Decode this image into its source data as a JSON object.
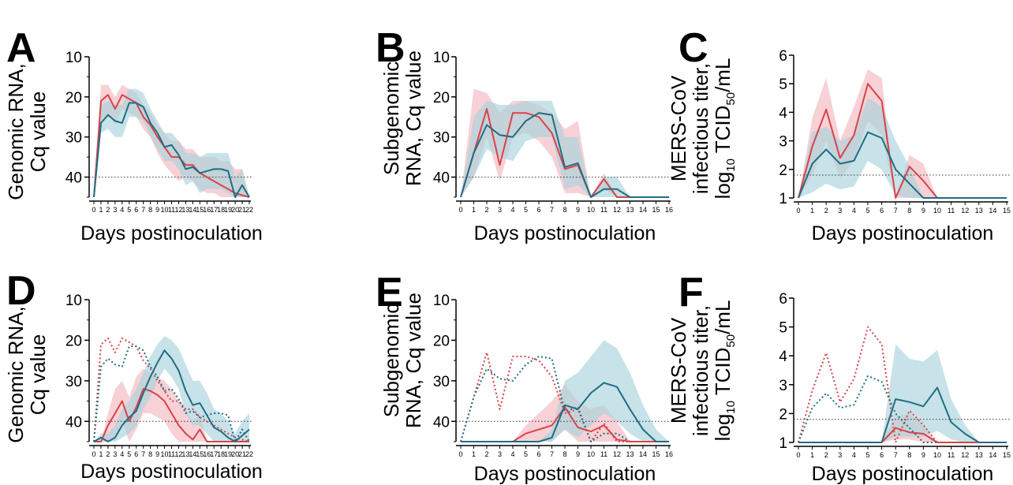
{
  "figure": {
    "x_axis_label": "Days postinoculation",
    "threshold_style": "dotted horizontal line",
    "colors": {
      "red": "#d9434a",
      "red_band": "#f2b8bf",
      "teal": "#1f6e83",
      "teal_band": "#a9d2dc",
      "threshold": "#333333"
    }
  },
  "chart_data": [
    {
      "panel": "A",
      "type": "line",
      "ylabel_lines": [
        "Genomic RNA,",
        "Cq value"
      ],
      "xlabel": "Days postinoculation",
      "y_inverted": true,
      "ylim": [
        45,
        10
      ],
      "yticks": [
        10,
        20,
        30,
        40
      ],
      "x": [
        0,
        1,
        2,
        3,
        4,
        5,
        6,
        7,
        8,
        9,
        10,
        11,
        12,
        13,
        14,
        15,
        16,
        17,
        18,
        19,
        20,
        21,
        22
      ],
      "threshold": 40,
      "series": [
        {
          "color": "red",
          "style": "solid",
          "values": [
            45,
            21,
            19.5,
            23,
            19.5,
            20.5,
            21.5,
            25,
            27,
            30,
            32.5,
            35,
            35,
            37,
            37,
            39,
            40,
            41,
            42,
            43,
            44,
            44.5,
            45
          ],
          "band_low": [
            45,
            17,
            17,
            20,
            17,
            18,
            19,
            22,
            24,
            27,
            29,
            31,
            31,
            33,
            33,
            35,
            35,
            35,
            36,
            36,
            38,
            38,
            45
          ],
          "band_high": [
            45,
            26,
            24,
            27,
            23,
            24,
            25,
            28,
            30,
            34,
            37,
            39,
            41,
            40,
            41,
            43,
            44,
            44,
            45,
            45,
            45,
            45,
            45
          ]
        },
        {
          "color": "teal",
          "style": "solid",
          "values": [
            45,
            26.5,
            24.5,
            26,
            26.5,
            21.5,
            21.5,
            22.5,
            26.5,
            29,
            32.5,
            32,
            34.5,
            38,
            37.5,
            39,
            38.5,
            38,
            38,
            38.5,
            45,
            42,
            45
          ],
          "band_low": [
            45,
            22,
            21,
            22,
            22,
            18,
            18,
            19,
            23,
            26,
            29,
            29,
            31,
            34,
            34,
            35,
            34,
            34,
            34,
            34,
            40,
            38,
            45
          ],
          "band_high": [
            45,
            29,
            28,
            30,
            30,
            25,
            25,
            26,
            30,
            33,
            36,
            36,
            38,
            42,
            41,
            44,
            43,
            43,
            43,
            44,
            45,
            45,
            45
          ]
        }
      ]
    },
    {
      "panel": "B",
      "type": "line",
      "ylabel_lines": [
        "Subgenomic",
        "RNA, Cq value"
      ],
      "xlabel": "Days postinoculation",
      "y_inverted": true,
      "ylim": [
        45,
        10
      ],
      "yticks": [
        10,
        20,
        30,
        40
      ],
      "x": [
        0,
        1,
        2,
        3,
        4,
        5,
        6,
        7,
        8,
        9,
        10,
        11,
        12,
        13,
        14,
        15,
        16
      ],
      "threshold": 40,
      "series": [
        {
          "color": "red",
          "style": "solid",
          "values": [
            45,
            34,
            23,
            37,
            24,
            24,
            25,
            29,
            38,
            37,
            45,
            40.5,
            45,
            45,
            45,
            45,
            45
          ],
          "band_low": [
            45,
            18,
            19,
            24,
            21,
            21,
            22,
            24,
            28,
            26,
            45,
            39,
            45,
            45,
            45,
            45,
            45
          ],
          "band_high": [
            45,
            40,
            30,
            41,
            30,
            29,
            31,
            35,
            44,
            44,
            45,
            43,
            45,
            45,
            45,
            45,
            45
          ]
        },
        {
          "color": "teal",
          "style": "solid",
          "values": [
            45,
            34,
            27,
            29.5,
            30,
            26,
            24,
            24.5,
            37.5,
            36.5,
            45,
            43,
            43,
            45,
            45,
            45,
            45
          ],
          "band_low": [
            45,
            25,
            21,
            22,
            22,
            21,
            21,
            21,
            30,
            30,
            45,
            40,
            40,
            45,
            45,
            45,
            45
          ],
          "band_high": [
            45,
            40,
            33,
            35,
            36,
            31,
            30,
            30,
            43,
            42,
            45,
            45,
            45,
            45,
            45,
            45,
            45
          ]
        }
      ]
    },
    {
      "panel": "C",
      "type": "line",
      "ylabel_lines": [
        "MERS-CoV",
        "infectious titer,"
      ],
      "ylabel_unit": {
        "pre": "log",
        "sub1": "10",
        "mid": " TCID",
        "sub2": "50",
        "post": "/mL"
      },
      "xlabel": "Days postinoculation",
      "ylim": [
        1,
        6
      ],
      "yticks": [
        1,
        2,
        3,
        4,
        5,
        6
      ],
      "x": [
        0,
        1,
        2,
        3,
        4,
        5,
        6,
        7,
        8,
        9,
        10,
        11,
        12,
        13,
        14,
        15
      ],
      "threshold": 1.8,
      "series": [
        {
          "color": "red",
          "style": "solid",
          "values": [
            1,
            2.8,
            4.1,
            2.4,
            3.2,
            5,
            4.4,
            1,
            2.1,
            1.6,
            1,
            1,
            1,
            1,
            1,
            1
          ],
          "band_low": [
            1,
            1.8,
            3,
            1.7,
            2.3,
            3.7,
            3.2,
            1,
            1,
            1,
            1,
            1,
            1,
            1,
            1,
            1
          ],
          "band_high": [
            1,
            3.8,
            5.2,
            3,
            4.2,
            5.5,
            5.2,
            1,
            2.5,
            2.2,
            1,
            1,
            1,
            1,
            1,
            1
          ]
        },
        {
          "color": "teal",
          "style": "solid",
          "values": [
            1,
            2.2,
            2.7,
            2.2,
            2.3,
            3.3,
            3.1,
            2,
            1.5,
            1,
            1,
            1,
            1,
            1,
            1,
            1
          ],
          "band_low": [
            1,
            1.2,
            1.5,
            1.3,
            1.4,
            2.3,
            2,
            1.1,
            1,
            1,
            1,
            1,
            1,
            1,
            1,
            1
          ],
          "band_high": [
            1,
            3.3,
            3.5,
            3,
            3.2,
            4.5,
            4.2,
            3,
            2.1,
            1,
            1,
            1,
            1,
            1,
            1,
            1
          ]
        }
      ]
    },
    {
      "panel": "D",
      "type": "line",
      "ylabel_lines": [
        "Genomic RNA,",
        "Cq value"
      ],
      "xlabel": "Days postinoculation",
      "y_inverted": true,
      "ylim": [
        45,
        10
      ],
      "yticks": [
        10,
        20,
        30,
        40
      ],
      "x": [
        0,
        1,
        2,
        3,
        4,
        5,
        6,
        7,
        8,
        9,
        10,
        11,
        12,
        13,
        14,
        15,
        16,
        17,
        18,
        19,
        20,
        21,
        22
      ],
      "threshold": 40,
      "series": [
        {
          "color": "red",
          "style": "dotted",
          "values": [
            45,
            21,
            19.5,
            23,
            19.5,
            20.5,
            21.5,
            25,
            27,
            30,
            32.5,
            35,
            35,
            37,
            37,
            39,
            40,
            41,
            42,
            43,
            44,
            44.5,
            45
          ]
        },
        {
          "color": "teal",
          "style": "dotted",
          "values": [
            45,
            26.5,
            24.5,
            26,
            26.5,
            21.5,
            21.5,
            22.5,
            26.5,
            29,
            32.5,
            32,
            34.5,
            38,
            37.5,
            39,
            38.5,
            38,
            38,
            38.5,
            45,
            42,
            45
          ]
        },
        {
          "color": "red",
          "style": "solid",
          "values": [
            45,
            45,
            41,
            38,
            35,
            40,
            36.5,
            32,
            32.5,
            33.5,
            35,
            38,
            41,
            43,
            44.5,
            42,
            45,
            45,
            45,
            45,
            45,
            45,
            45
          ],
          "band_low": [
            45,
            45,
            38,
            32,
            30,
            34,
            29,
            27,
            28,
            29,
            30,
            32,
            35,
            37,
            40,
            38,
            45,
            45,
            45,
            45,
            45,
            45,
            45
          ],
          "band_high": [
            45,
            45,
            45,
            44,
            40,
            45,
            42,
            38,
            38,
            39,
            40,
            43,
            45,
            45,
            45,
            45,
            45,
            45,
            45,
            45,
            45,
            45,
            45
          ]
        },
        {
          "color": "teal",
          "style": "solid",
          "values": [
            45,
            44,
            45,
            44,
            41,
            39,
            37.5,
            33,
            29,
            25.5,
            22.5,
            24.5,
            27.5,
            32.5,
            36,
            35.5,
            38.5,
            41.5,
            42.5,
            44,
            45,
            43.5,
            42
          ],
          "band_low": [
            45,
            43,
            43,
            41,
            37,
            35,
            32,
            28,
            24,
            21,
            19,
            20,
            22,
            26,
            30,
            30,
            33,
            37,
            38,
            40,
            43,
            40,
            38
          ],
          "band_high": [
            45,
            45,
            45,
            45,
            44,
            43,
            41,
            37,
            34,
            30,
            27,
            29,
            32,
            38,
            41,
            41,
            43,
            45,
            45,
            45,
            45,
            45,
            45
          ]
        }
      ]
    },
    {
      "panel": "E",
      "type": "line",
      "ylabel_lines": [
        "Subgenomic",
        "RNA, Cq value"
      ],
      "xlabel": "Days postinoculation",
      "y_inverted": true,
      "ylim": [
        45,
        10
      ],
      "yticks": [
        10,
        20,
        30,
        40
      ],
      "x": [
        0,
        1,
        2,
        3,
        4,
        5,
        6,
        7,
        8,
        9,
        10,
        11,
        12,
        13,
        14,
        15,
        16
      ],
      "threshold": 40,
      "series": [
        {
          "color": "red",
          "style": "dotted",
          "values": [
            45,
            34,
            23,
            37,
            24,
            24,
            25,
            29,
            38,
            37,
            45,
            40.5,
            45,
            45,
            45,
            45,
            45
          ]
        },
        {
          "color": "teal",
          "style": "dotted",
          "values": [
            45,
            34,
            27,
            29.5,
            30,
            26,
            24,
            24.5,
            37.5,
            36.5,
            45,
            43,
            43,
            45,
            45,
            45,
            45
          ]
        },
        {
          "color": "red",
          "style": "solid",
          "values": [
            45,
            45,
            45,
            45,
            45,
            43,
            42,
            41,
            36.5,
            41.5,
            42.5,
            41,
            44.5,
            45,
            45,
            45,
            45
          ],
          "band_low": [
            45,
            45,
            45,
            45,
            45,
            41,
            38,
            35,
            31,
            35,
            37,
            36,
            40,
            45,
            45,
            45,
            45
          ],
          "band_high": [
            45,
            45,
            45,
            45,
            45,
            45,
            45,
            45,
            42,
            45,
            45,
            45,
            45,
            45,
            45,
            45,
            45
          ]
        },
        {
          "color": "teal",
          "style": "solid",
          "values": [
            45,
            45,
            45,
            45,
            45,
            45,
            45,
            44,
            36,
            37,
            33,
            30.5,
            31.5,
            37,
            42,
            45,
            45
          ],
          "band_low": [
            45,
            45,
            45,
            45,
            45,
            45,
            45,
            42,
            30,
            28,
            24,
            20,
            22,
            28,
            36,
            42,
            45
          ],
          "band_high": [
            45,
            45,
            45,
            45,
            45,
            45,
            45,
            45,
            42,
            44,
            41,
            38,
            40,
            43,
            45,
            45,
            45
          ]
        }
      ]
    },
    {
      "panel": "F",
      "type": "line",
      "ylabel_lines": [
        "MERS-CoV",
        "infectious titer,"
      ],
      "ylabel_unit": {
        "pre": "log",
        "sub1": "10",
        "mid": " TCID",
        "sub2": "50",
        "post": "/mL"
      },
      "xlabel": "Days postinoculation",
      "ylim": [
        1,
        6
      ],
      "yticks": [
        1,
        2,
        3,
        4,
        5,
        6
      ],
      "x": [
        0,
        1,
        2,
        3,
        4,
        5,
        6,
        7,
        8,
        9,
        10,
        11,
        12,
        13,
        14,
        15
      ],
      "threshold": 1.8,
      "series": [
        {
          "color": "red",
          "style": "dotted",
          "values": [
            1,
            2.8,
            4.1,
            2.4,
            3.2,
            5,
            4.4,
            1,
            2.1,
            1.6,
            1,
            1,
            1,
            1,
            1,
            1
          ]
        },
        {
          "color": "teal",
          "style": "dotted",
          "values": [
            1,
            2.2,
            2.7,
            2.2,
            2.3,
            3.3,
            3.1,
            2,
            1.5,
            1,
            1,
            1,
            1,
            1,
            1,
            1
          ]
        },
        {
          "color": "red",
          "style": "solid",
          "values": [
            1,
            1,
            1,
            1,
            1,
            1,
            1,
            1.5,
            1.35,
            1.3,
            1,
            1,
            1,
            1,
            1,
            1
          ],
          "band_low": [
            1,
            1,
            1,
            1,
            1,
            1,
            1,
            1.1,
            1.1,
            1,
            1,
            1,
            1,
            1,
            1,
            1
          ],
          "band_high": [
            1,
            1,
            1,
            1,
            1,
            1,
            1,
            1.9,
            2,
            1.6,
            1,
            1,
            1,
            1,
            1,
            1
          ]
        },
        {
          "color": "teal",
          "style": "solid",
          "values": [
            1,
            1,
            1,
            1,
            1,
            1,
            1,
            2.5,
            2.4,
            2.25,
            2.9,
            1.7,
            1.3,
            1,
            1,
            1
          ],
          "band_low": [
            1,
            1,
            1,
            1,
            1,
            1,
            1,
            1.2,
            1.2,
            1.2,
            1.4,
            1.1,
            1,
            1,
            1,
            1
          ],
          "band_high": [
            1,
            1,
            1,
            1,
            1,
            1,
            1,
            4.4,
            3.9,
            3.8,
            4.2,
            2.5,
            1.6,
            1,
            1,
            1
          ]
        }
      ]
    }
  ]
}
